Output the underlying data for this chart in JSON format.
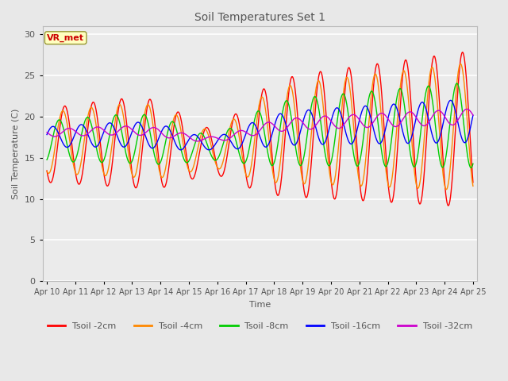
{
  "title": "Soil Temperatures Set 1",
  "xlabel": "Time",
  "ylabel": "Soil Temperature (C)",
  "annotation": "VR_met",
  "ylim": [
    0,
    31
  ],
  "yticks": [
    0,
    5,
    10,
    15,
    20,
    25,
    30
  ],
  "xstart_day": 10,
  "xend_day": 25,
  "days": 15,
  "hours_per_day": 24,
  "resolution": 0.25,
  "lines": [
    {
      "label": "Tsoil -2cm",
      "color": "#ff0000",
      "amp_scale": 1.0,
      "phase_shift": 0.0,
      "base_extra": 0.0
    },
    {
      "label": "Tsoil -4cm",
      "color": "#ff8800",
      "amp_scale": 0.82,
      "phase_shift": 0.07,
      "base_extra": 0.3
    },
    {
      "label": "Tsoil -8cm",
      "color": "#00cc00",
      "amp_scale": 0.55,
      "phase_shift": 0.2,
      "base_extra": 0.5
    },
    {
      "label": "Tsoil -16cm",
      "color": "#0000ff",
      "amp_scale": 0.28,
      "phase_shift": 0.42,
      "base_extra": 1.0
    },
    {
      "label": "Tsoil -32cm",
      "color": "#cc00cc",
      "amp_scale": 0.1,
      "phase_shift": 0.85,
      "base_extra": 1.5
    }
  ],
  "bg_color": "#e8e8e8",
  "plot_bg_color": "#ebebeb",
  "grid_color": "#ffffff",
  "annotation_box_facecolor": "#ffffc0",
  "annotation_box_edgecolor": "#999933",
  "annotation_text_color": "#cc0000",
  "legend_text_color": "#555555",
  "tick_label_color": "#555555",
  "title_color": "#555555",
  "axis_label_color": "#555555",
  "figsize": [
    6.4,
    4.8
  ],
  "dpi": 100
}
